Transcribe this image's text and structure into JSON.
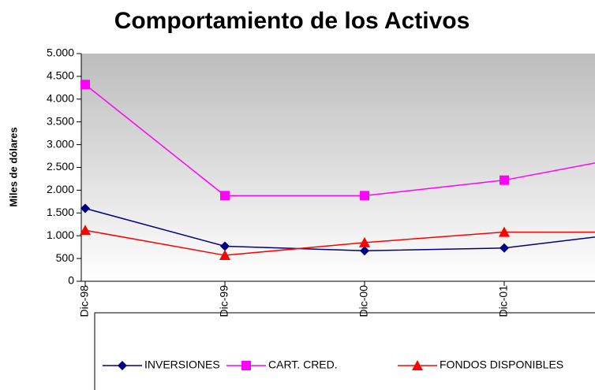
{
  "chart_data": {
    "type": "line",
    "title": "Comportamiento de los Activos",
    "y_label": "Miles de dólares",
    "categories": [
      "Dic-98",
      "Dic-99",
      "Dic-00",
      "Dic-01",
      null
    ],
    "series": [
      {
        "name": "INVERSIONES",
        "color": "#000080",
        "marker": "diamond",
        "values": [
          1600,
          770,
          670,
          730,
          1100
        ]
      },
      {
        "name": "CART. CRED.",
        "color": "#ff00ff",
        "marker": "square",
        "values": [
          4320,
          1880,
          1880,
          2220,
          2800
        ]
      },
      {
        "name": "FONDOS DISPONIBLES",
        "color": "#ff0000",
        "marker": "triangle",
        "values": [
          1120,
          570,
          850,
          1080,
          1080
        ]
      }
    ],
    "ylim": [
      0,
      5000
    ],
    "yticks": [
      0,
      500,
      {
        "value": 1000,
        "label": "1.000"
      },
      {
        "value": 1500,
        "label": "1.500"
      },
      {
        "value": 2000,
        "label": "2.000"
      },
      {
        "value": 2500,
        "label": "2.500"
      },
      {
        "value": 3000,
        "label": "3.000"
      },
      {
        "value": 3500,
        "label": "3.500"
      },
      {
        "value": 4000,
        "label": "4.000"
      },
      {
        "value": 4500,
        "label": "4.500"
      },
      {
        "value": 5000,
        "label": "5.000"
      }
    ]
  }
}
